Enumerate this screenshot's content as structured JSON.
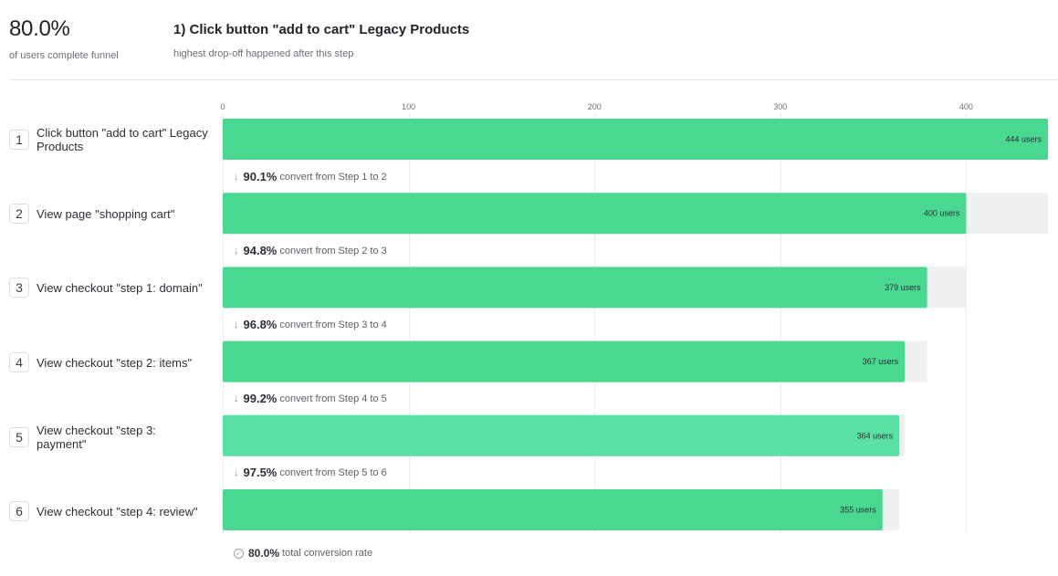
{
  "summary": {
    "value": "80.0%",
    "caption": "of users complete funnel"
  },
  "dropoff": {
    "title": "1) Click button \"add to cart\" Legacy Products",
    "caption": "highest drop-off happened after this step"
  },
  "chart_data": {
    "type": "bar",
    "orientation": "horizontal",
    "title": "",
    "xlim": [
      0,
      444
    ],
    "xticks": [
      0,
      100,
      200,
      300,
      400
    ],
    "grid": true,
    "categories": [
      "Click button \"add to cart\" Legacy Products",
      "View page \"shopping cart\"",
      "View checkout \"step 1: domain\"",
      "View checkout \"step 2: items\"",
      "View checkout \"step 3: payment\"",
      "View checkout \"step 4: review\""
    ],
    "values": [
      444,
      400,
      379,
      367,
      364,
      355
    ],
    "bar_labels": [
      "444 users",
      "400 users",
      "379 users",
      "367 users",
      "364 users",
      "355 users"
    ],
    "previous_step_values": [
      null,
      444,
      400,
      379,
      367,
      364
    ]
  },
  "steps": [
    {
      "num": "1",
      "label": "Click button \"add to cart\" Legacy Products"
    },
    {
      "num": "2",
      "label": "View page \"shopping cart\""
    },
    {
      "num": "3",
      "label": "View checkout \"step 1: domain\""
    },
    {
      "num": "4",
      "label": "View checkout \"step 2: items\""
    },
    {
      "num": "5",
      "label": "View checkout \"step 3: payment\""
    },
    {
      "num": "6",
      "label": "View checkout \"step 4: review\""
    }
  ],
  "conversions": [
    {
      "rate": "90.1%",
      "text": "convert from Step 1 to 2"
    },
    {
      "rate": "94.8%",
      "text": "convert from Step 2 to 3"
    },
    {
      "rate": "96.8%",
      "text": "convert from Step 3 to 4"
    },
    {
      "rate": "99.2%",
      "text": "convert from Step 4 to 5"
    },
    {
      "rate": "97.5%",
      "text": "convert from Step 5 to 6"
    }
  ],
  "total": {
    "rate": "80.0%",
    "text": "total conversion rate"
  },
  "colors": {
    "bar": "#4ad891",
    "bar_highlight": "#5ae0a2",
    "dropoff_bg": "#eff1f0",
    "grid": "#eceeef",
    "tick_text": "#6b7077",
    "bar_label": "#2b3036"
  }
}
